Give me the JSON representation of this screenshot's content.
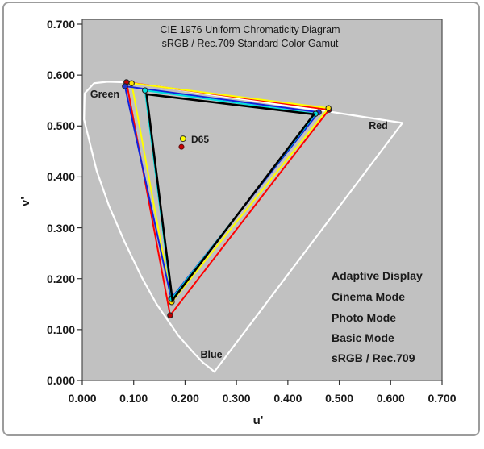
{
  "frame": {
    "background": "#ffffff",
    "border_color": "#9c9c9c"
  },
  "chart_data": {
    "type": "line",
    "title_lines": [
      "CIE 1976 Uniform Chromaticity Diagram",
      "sRGB / Rec.709 Standard Color Gamut"
    ],
    "xlabel": "u'",
    "ylabel": "v'",
    "xlim": [
      0.0,
      0.7
    ],
    "ylim": [
      0.0,
      0.7
    ],
    "x_tick_labels": [
      "0.000",
      "0.100",
      "0.200",
      "0.300",
      "0.400",
      "0.500",
      "0.600",
      "0.700"
    ],
    "y_tick_labels": [
      "0.000",
      "0.100",
      "0.200",
      "0.300",
      "0.400",
      "0.500",
      "0.600",
      "0.700"
    ],
    "grid": false,
    "plot_bg": "#c1c1c1",
    "legend_position": "inside-bottom-right",
    "spectral_locus": {
      "color": "#ffffff",
      "line_width": 2.2,
      "closed_by_purple_line": true,
      "points": [
        [
          0.257,
          0.017
        ],
        [
          0.244,
          0.028
        ],
        [
          0.235,
          0.035
        ],
        [
          0.216,
          0.055
        ],
        [
          0.188,
          0.087
        ],
        [
          0.144,
          0.151
        ],
        [
          0.115,
          0.204
        ],
        [
          0.083,
          0.271
        ],
        [
          0.052,
          0.343
        ],
        [
          0.028,
          0.412
        ],
        [
          0.0035,
          0.513
        ],
        [
          0.0046,
          0.564
        ],
        [
          0.023,
          0.584
        ],
        [
          0.05,
          0.587
        ],
        [
          0.079,
          0.586
        ],
        [
          0.113,
          0.582
        ],
        [
          0.153,
          0.577
        ],
        [
          0.203,
          0.569
        ],
        [
          0.262,
          0.56
        ],
        [
          0.332,
          0.55
        ],
        [
          0.403,
          0.539
        ],
        [
          0.469,
          0.53
        ],
        [
          0.52,
          0.522
        ],
        [
          0.623,
          0.506
        ]
      ]
    },
    "series": [
      {
        "name": "Adaptive Display",
        "color": "#ff0000",
        "marker_color": "#c00000",
        "line_width": 2,
        "markers": true,
        "vertices_uv": [
          [
            0.086,
            0.586
          ],
          [
            0.48,
            0.532
          ],
          [
            0.171,
            0.128
          ]
        ]
      },
      {
        "name": "Cinema Mode",
        "color": "#ffff00",
        "marker_color": "#ffe400",
        "line_width": 2,
        "markers": true,
        "vertices_uv": [
          [
            0.096,
            0.584
          ],
          [
            0.479,
            0.535
          ],
          [
            0.174,
            0.154
          ]
        ]
      },
      {
        "name": "Photo Mode",
        "color": "#1122dd",
        "marker_color": "#2233cc",
        "line_width": 2,
        "markers": true,
        "vertices_uv": [
          [
            0.083,
            0.578
          ],
          [
            0.46,
            0.527
          ],
          [
            0.173,
            0.161
          ]
        ]
      },
      {
        "name": "Basic Mode",
        "color": "#00dede",
        "marker_color": "#00e0e0",
        "line_width": 2,
        "markers": true,
        "vertices_uv": [
          [
            0.122,
            0.57
          ],
          [
            0.454,
            0.524
          ],
          [
            0.174,
            0.16
          ]
        ]
      },
      {
        "name": "sRGB / Rec.709",
        "color": "#000000",
        "marker_color": "#000000",
        "line_width": 2.6,
        "markers": false,
        "vertices_uv": [
          [
            0.125,
            0.5625
          ],
          [
            0.4507,
            0.5229
          ],
          [
            0.1754,
            0.1579
          ]
        ]
      }
    ],
    "white_points": [
      {
        "label": "D65",
        "fill": "#ffff00",
        "stroke": "#333333",
        "u": 0.196,
        "v": 0.475
      },
      {
        "label": "",
        "fill": "#cc0000",
        "stroke": "#5a0a0a",
        "u": 0.193,
        "v": 0.459
      }
    ],
    "region_labels": [
      {
        "text": "Green"
      },
      {
        "text": "Red"
      },
      {
        "text": "Blue"
      }
    ],
    "legend": [
      {
        "label": "Adaptive Display",
        "color": "#ff0000"
      },
      {
        "label": "Cinema Mode",
        "color": "#ffff00"
      },
      {
        "label": "Photo Mode",
        "color": "#2222dd"
      },
      {
        "label": "Basic Mode",
        "color": "#00ffff"
      },
      {
        "label": "sRGB / Rec.709",
        "color": "#1a1a1a"
      }
    ]
  }
}
